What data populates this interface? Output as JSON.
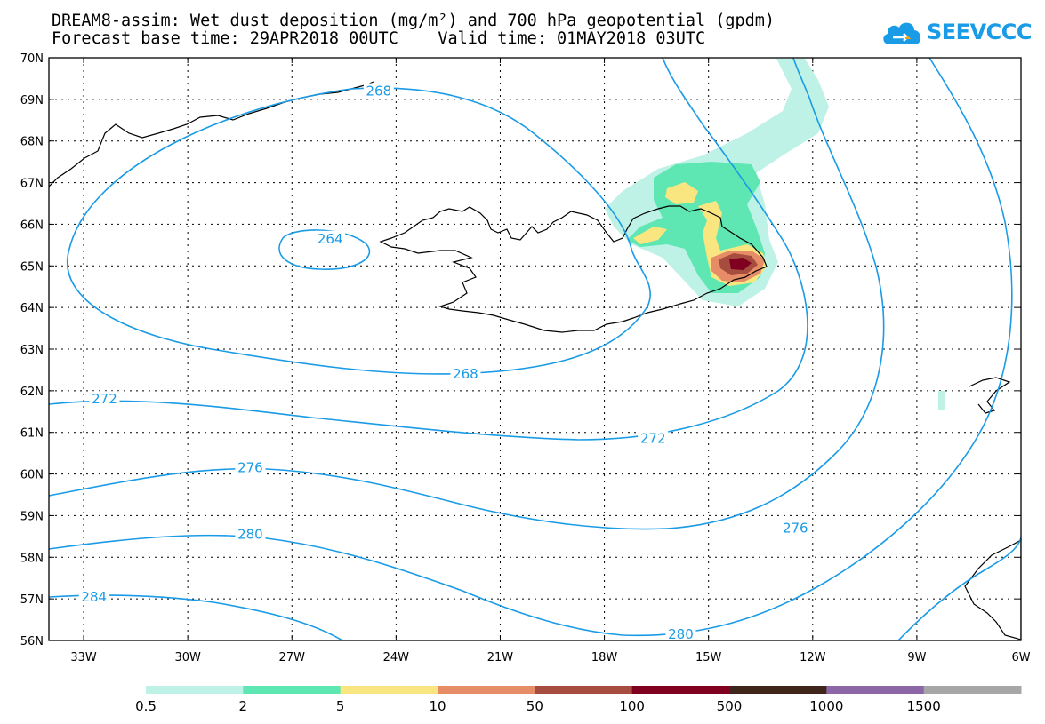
{
  "title_line1": "DREAM8-assim: Wet dust deposition (mg/m²) and 700 hPa geopotential (gpdm)",
  "title_line2": "Forecast base time: 29APR2018 00UTC    Valid time: 01MAY2018 03UTC",
  "logo_text": "SEEVCCC",
  "map": {
    "lon_range": [
      -34,
      -6
    ],
    "lat_range": [
      56,
      70
    ],
    "lon_ticks": [
      {
        "value": -33,
        "label": "33W"
      },
      {
        "value": -30,
        "label": "30W"
      },
      {
        "value": -27,
        "label": "27W"
      },
      {
        "value": -24,
        "label": "24W"
      },
      {
        "value": -21,
        "label": "21W"
      },
      {
        "value": -18,
        "label": "18W"
      },
      {
        "value": -15,
        "label": "15W"
      },
      {
        "value": -12,
        "label": "12W"
      },
      {
        "value": -9,
        "label": "9W"
      },
      {
        "value": -6,
        "label": "6W"
      }
    ],
    "lat_ticks": [
      {
        "value": 70,
        "label": "70N"
      },
      {
        "value": 69,
        "label": "69N"
      },
      {
        "value": 68,
        "label": "68N"
      },
      {
        "value": 67,
        "label": "67N"
      },
      {
        "value": 66,
        "label": "66N"
      },
      {
        "value": 65,
        "label": "65N"
      },
      {
        "value": 64,
        "label": "64N"
      },
      {
        "value": 63,
        "label": "63N"
      },
      {
        "value": 62,
        "label": "62N"
      },
      {
        "value": 61,
        "label": "61N"
      },
      {
        "value": 60,
        "label": "60N"
      },
      {
        "value": 59,
        "label": "59N"
      },
      {
        "value": 58,
        "label": "58N"
      },
      {
        "value": 57,
        "label": "57N"
      },
      {
        "value": 56,
        "label": "56N"
      }
    ],
    "gridlines": true,
    "contour_color": "#1a9be6",
    "contour_labels": [
      {
        "text": "268",
        "lon": -24.5,
        "lat": 69.2
      },
      {
        "text": "264",
        "lon": -25.9,
        "lat": 65.65
      },
      {
        "text": "268",
        "lon": -22.0,
        "lat": 62.4
      },
      {
        "text": "272",
        "lon": -32.4,
        "lat": 61.8
      },
      {
        "text": "272",
        "lon": -16.6,
        "lat": 60.85
      },
      {
        "text": "276",
        "lon": -28.2,
        "lat": 60.15
      },
      {
        "text": "276",
        "lon": -12.5,
        "lat": 58.7
      },
      {
        "text": "280",
        "lon": -28.2,
        "lat": 58.55
      },
      {
        "text": "280",
        "lon": -15.8,
        "lat": 56.15
      },
      {
        "text": "284",
        "lon": -32.7,
        "lat": 57.05
      }
    ]
  },
  "colorbar": {
    "colors": [
      "#bff2e6",
      "#5ee6b3",
      "#fae680",
      "#e68c66",
      "#a64d40",
      "#800020",
      "#40261a",
      "#8c66a6",
      "#a6a6a6"
    ],
    "labels": [
      "0.5",
      "2",
      "5",
      "10",
      "50",
      "100",
      "500",
      "1000",
      "1500"
    ]
  }
}
